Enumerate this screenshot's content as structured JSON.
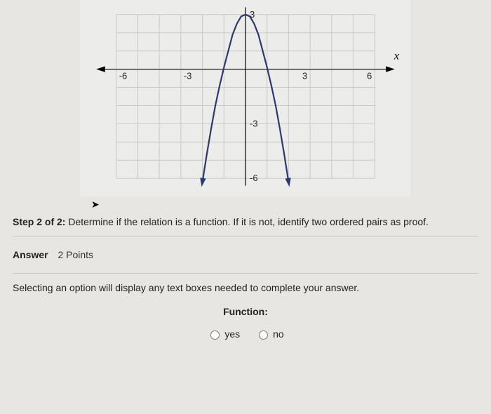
{
  "step": {
    "prefix": "Step 2 of 2:",
    "text": " Determine if the relation is a function. If it is not, identify two ordered pairs as proof."
  },
  "answer": {
    "label": "Answer",
    "points": "2 Points"
  },
  "instruction": "Selecting an option will display any text boxes needed to complete your answer.",
  "function_label": "Function:",
  "options": {
    "yes": "yes",
    "no": "no"
  },
  "chart": {
    "type": "line",
    "x_axis_label": "x",
    "xlim": [
      -6,
      6
    ],
    "ylim": [
      -6,
      3
    ],
    "xtick_labels": {
      "-6": "-6",
      "-3": "-3",
      "3": "3",
      "6": "6"
    },
    "ytick_labels": {
      "3": "3",
      "-3": "-3",
      "-6": "-6"
    },
    "grid_color": "#c9c9c9",
    "axis_color": "#000000",
    "background_color": "#ececea",
    "curve_color": "#2a3a6a",
    "curve_points": [
      [
        -2.0,
        -6.2
      ],
      [
        -1.8,
        -4.7
      ],
      [
        -1.6,
        -3.3
      ],
      [
        -1.4,
        -2.0
      ],
      [
        -1.2,
        -0.9
      ],
      [
        -1.0,
        0.1
      ],
      [
        -0.8,
        1.0
      ],
      [
        -0.6,
        1.9
      ],
      [
        -0.4,
        2.5
      ],
      [
        -0.2,
        2.9
      ],
      [
        0.0,
        3.0
      ],
      [
        0.2,
        2.9
      ],
      [
        0.4,
        2.5
      ],
      [
        0.6,
        1.9
      ],
      [
        0.8,
        1.0
      ],
      [
        1.0,
        0.1
      ],
      [
        1.2,
        -0.9
      ],
      [
        1.4,
        -2.0
      ],
      [
        1.6,
        -3.3
      ],
      [
        1.8,
        -4.7
      ],
      [
        2.0,
        -6.2
      ]
    ],
    "curve_has_arrows": true
  }
}
